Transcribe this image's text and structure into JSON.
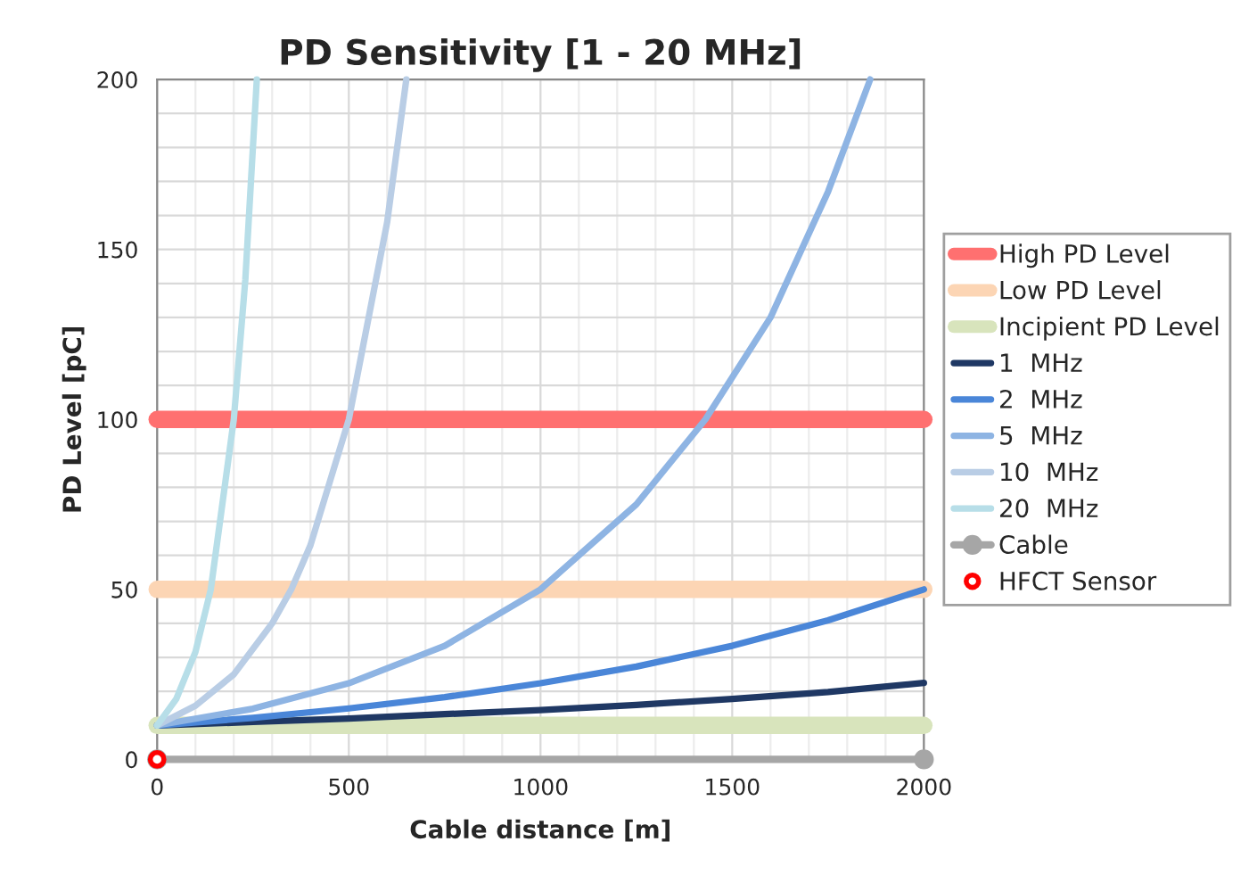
{
  "chart_data": {
    "type": "line",
    "title": "PD Sensitivity [1 - 20 MHz]",
    "xlabel": "Cable distance [m]",
    "ylabel": "PD Level [pC]",
    "xlim": [
      0,
      2000
    ],
    "ylim": [
      0,
      200
    ],
    "xticks": [
      0,
      500,
      1000,
      1500,
      2000
    ],
    "yticks": [
      0,
      50,
      100,
      150,
      200
    ],
    "grid": true,
    "legend": "right",
    "series": [
      {
        "name": "High PD Level",
        "color": "#ff7070",
        "x": [
          0,
          2000
        ],
        "values": [
          100,
          100
        ],
        "marker": "none"
      },
      {
        "name": "Low PD Level",
        "color": "#fcd5b4",
        "x": [
          0,
          2000
        ],
        "values": [
          50,
          50
        ],
        "marker": "none"
      },
      {
        "name": "Incipient PD Level",
        "color": "#d8e4bc",
        "x": [
          0,
          2000
        ],
        "values": [
          10,
          10
        ],
        "marker": "none"
      },
      {
        "name": "1  MHz",
        "color": "#1f3864",
        "x": [
          0,
          250,
          500,
          750,
          1000,
          1250,
          1500,
          1750,
          2000
        ],
        "values": [
          10,
          11,
          12,
          13.3,
          14.5,
          16,
          17.8,
          19.8,
          22.5
        ],
        "marker": "none"
      },
      {
        "name": "2  MHz",
        "color": "#4a86d8",
        "x": [
          0,
          250,
          500,
          750,
          1000,
          1250,
          1500,
          1750,
          2000
        ],
        "values": [
          10,
          12.2,
          15,
          18.3,
          22.4,
          27.3,
          33.4,
          40.9,
          50
        ],
        "marker": "none"
      },
      {
        "name": "5  MHz",
        "color": "#8eb4e3",
        "x": [
          0,
          250,
          500,
          750,
          1000,
          1250,
          1430,
          1600,
          1750,
          1860
        ],
        "values": [
          10,
          14.9,
          22.4,
          33.4,
          50,
          75,
          100,
          130,
          167,
          200
        ],
        "marker": "none"
      },
      {
        "name": "10  MHz",
        "color": "#b9cde5",
        "x": [
          0,
          100,
          200,
          300,
          350,
          400,
          500,
          600,
          650
        ],
        "values": [
          10,
          15.8,
          25,
          40,
          50,
          63,
          100,
          158,
          200
        ],
        "marker": "none"
      },
      {
        "name": "20  MHz",
        "color": "#b7dee8",
        "x": [
          0,
          50,
          100,
          140,
          200,
          230,
          260
        ],
        "values": [
          10,
          17.8,
          31.6,
          50,
          100,
          141,
          200
        ],
        "marker": "none"
      },
      {
        "name": "Cable",
        "color": "#a6a6a6",
        "x": [
          0,
          2000
        ],
        "values": [
          0,
          0
        ],
        "marker": "circle"
      },
      {
        "name": "HFCT Sensor",
        "type": "scatter",
        "color": "#ff0000",
        "x": [
          0
        ],
        "values": [
          0
        ],
        "marker": "circle"
      }
    ]
  }
}
